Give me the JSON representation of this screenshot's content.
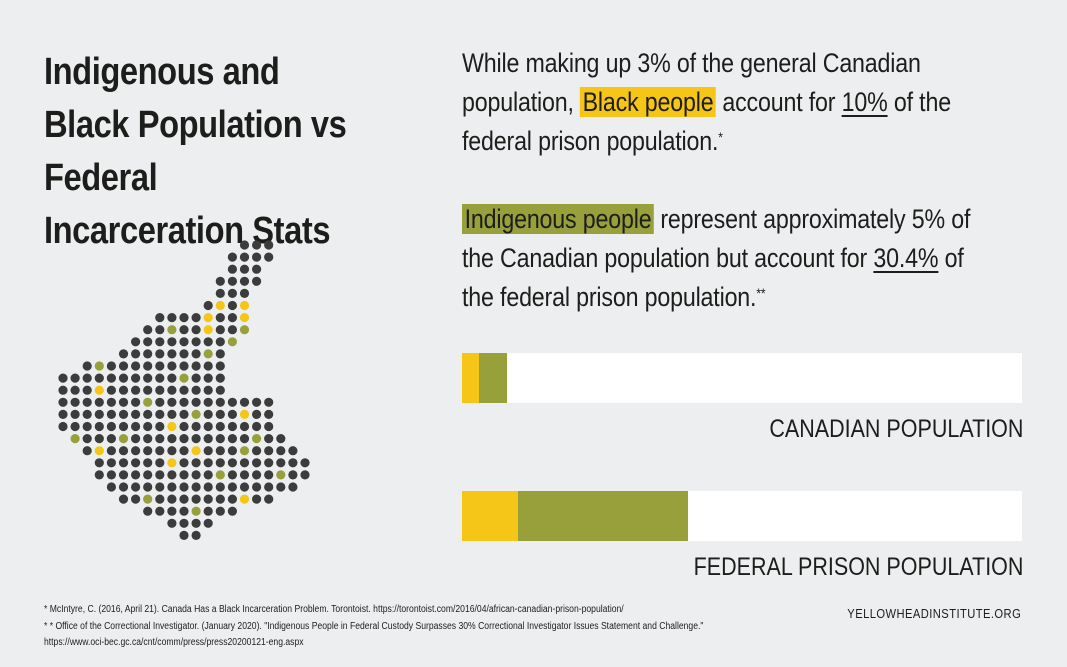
{
  "title": "Indigenous and Black Population vs Federal Incarceration Stats",
  "statement1": {
    "pre": "While making up 3% of the general Canadian population, ",
    "highlight": "Black people",
    "mid": " account for ",
    "stat": "10%",
    "post": " of the federal prison population.",
    "mark": "*"
  },
  "statement2": {
    "highlight": "Indigenous people",
    "mid": " represent approximately 5% of the Canadian population but account for ",
    "stat": "30.4%",
    "post": " of the federal prison population.",
    "mark": "**"
  },
  "colors": {
    "black_people": "#f5c518",
    "indigenous_people": "#97a03a",
    "dots": "#3d3c3c",
    "background": "#eceef0"
  },
  "chart_data": {
    "type": "bar",
    "orientation": "horizontal",
    "stacked": true,
    "xlim": [
      0,
      100
    ],
    "categories": [
      "CANADIAN POPULATION",
      "FEDERAL PRISON POPULATION"
    ],
    "series": [
      {
        "name": "Black people",
        "color": "#f5c518",
        "values": [
          3,
          10
        ]
      },
      {
        "name": "Indigenous people",
        "color": "#97a03a",
        "values": [
          5,
          30.4
        ]
      }
    ]
  },
  "footnotes": [
    "* McIntyre, C. (2016, April 21). Canada Has a Black Incarceration Problem. Torontoist. https://torontoist.com/2016/04/african-canadian-prison-population/",
    "* * Office of the Correctional Investigator. (January 2020). \"Indigenous People in Federal Custody Surpasses 30% Correctional Investigator Issues Statement and Challenge.\"",
    "https://www.oci-bec.gc.ca/cnt/comm/press/press20200121-eng.aspx"
  ],
  "site": "YELLOWHEADINSTITUTE.ORG"
}
